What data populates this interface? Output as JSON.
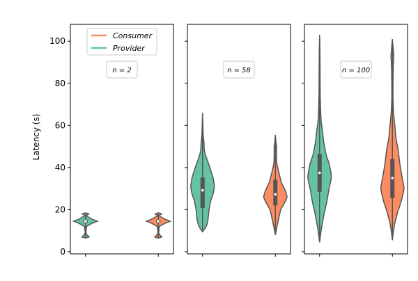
{
  "chart_data": {
    "type": "violin",
    "ylabel": "Latency (s)",
    "ylim": [
      -1,
      108
    ],
    "yticks": [
      "0",
      "20",
      "40",
      "60",
      "80",
      "100"
    ],
    "ytick_values": [
      0,
      20,
      40,
      60,
      80,
      100
    ],
    "legend": {
      "placement": "top-center of first panel",
      "entries": [
        {
          "label": "Consumer",
          "color": "#fc8d62"
        },
        {
          "label": "Provider",
          "color": "#66c2a5"
        }
      ]
    },
    "panels": [
      {
        "annotation": "n = 2",
        "violins": [
          {
            "series": "Provider",
            "color": "#66c2a5",
            "min": 6.5,
            "max": 18.5,
            "q1": 13.8,
            "median": 14.5,
            "q3": 15.2,
            "profile": [
              [
                6.5,
                0
              ],
              [
                7,
                0.32
              ],
              [
                8,
                0.12
              ],
              [
                9,
                0.03
              ],
              [
                12,
                0.08
              ],
              [
                13.5,
                0.55
              ],
              [
                14.5,
                1.0
              ],
              [
                15.5,
                0.55
              ],
              [
                17,
                0.08
              ],
              [
                17.5,
                0.14
              ],
              [
                18,
                0.3
              ],
              [
                18.5,
                0
              ]
            ]
          },
          {
            "series": "Consumer",
            "color": "#fc8d62",
            "min": 6.5,
            "max": 18.5,
            "q1": 13.8,
            "median": 14.5,
            "q3": 15.2,
            "profile": [
              [
                6.5,
                0
              ],
              [
                7,
                0.32
              ],
              [
                8,
                0.12
              ],
              [
                9,
                0.03
              ],
              [
                12,
                0.08
              ],
              [
                13.5,
                0.55
              ],
              [
                14.5,
                1.0
              ],
              [
                15.5,
                0.55
              ],
              [
                17,
                0.08
              ],
              [
                17.5,
                0.14
              ],
              [
                18,
                0.3
              ],
              [
                18.5,
                0
              ]
            ]
          }
        ]
      },
      {
        "annotation": "n = 58",
        "violins": [
          {
            "series": "Provider",
            "color": "#66c2a5",
            "min": 9.5,
            "max": 66,
            "q1": 20.8,
            "median": 29.2,
            "q3": 35.3,
            "profile": [
              [
                9.5,
                0
              ],
              [
                12,
                0.32
              ],
              [
                15,
                0.45
              ],
              [
                20,
                0.55
              ],
              [
                24,
                0.68
              ],
              [
                28,
                0.92
              ],
              [
                31,
                1.0
              ],
              [
                35,
                0.9
              ],
              [
                40,
                0.62
              ],
              [
                45,
                0.3
              ],
              [
                48,
                0.15
              ],
              [
                52,
                0.12
              ],
              [
                55,
                0.06
              ],
              [
                60,
                0.03
              ],
              [
                66,
                0
              ]
            ]
          },
          {
            "series": "Consumer",
            "color": "#fc8d62",
            "min": 8,
            "max": 55.5,
            "q1": 22,
            "median": 27.3,
            "q3": 34.2,
            "profile": [
              [
                8,
                0
              ],
              [
                11,
                0.1
              ],
              [
                15,
                0.25
              ],
              [
                20,
                0.45
              ],
              [
                24,
                0.85
              ],
              [
                26,
                1.0
              ],
              [
                29,
                0.85
              ],
              [
                33,
                0.5
              ],
              [
                38,
                0.28
              ],
              [
                42,
                0.12
              ],
              [
                46,
                0.1
              ],
              [
                50,
                0.1
              ],
              [
                52,
                0.05
              ],
              [
                55.5,
                0
              ]
            ]
          }
        ]
      },
      {
        "annotation": "n = 100",
        "violins": [
          {
            "series": "Provider",
            "color": "#66c2a5",
            "min": 4.5,
            "max": 103,
            "q1": 28.5,
            "median": 37.5,
            "q3": 46.5,
            "profile": [
              [
                4.5,
                0
              ],
              [
                8,
                0.08
              ],
              [
                12,
                0.18
              ],
              [
                18,
                0.38
              ],
              [
                24,
                0.62
              ],
              [
                30,
                0.8
              ],
              [
                35,
                1.0
              ],
              [
                38,
                0.95
              ],
              [
                42,
                0.8
              ],
              [
                46,
                0.55
              ],
              [
                52,
                0.35
              ],
              [
                57,
                0.25
              ],
              [
                62,
                0.13
              ],
              [
                68,
                0.08
              ],
              [
                75,
                0.05
              ],
              [
                85,
                0.04
              ],
              [
                95,
                0.03
              ],
              [
                103,
                0
              ]
            ]
          },
          {
            "series": "Consumer",
            "color": "#fc8d62",
            "min": 5.5,
            "max": 101,
            "q1": 25.5,
            "median": 35,
            "q3": 44,
            "profile": [
              [
                5.5,
                0
              ],
              [
                9,
                0.07
              ],
              [
                13,
                0.18
              ],
              [
                18,
                0.4
              ],
              [
                24,
                0.75
              ],
              [
                30,
                1.0
              ],
              [
                36,
                0.8
              ],
              [
                42,
                0.62
              ],
              [
                48,
                0.5
              ],
              [
                54,
                0.3
              ],
              [
                60,
                0.2
              ],
              [
                66,
                0.1
              ],
              [
                72,
                0.05
              ],
              [
                80,
                0.05
              ],
              [
                88,
                0.07
              ],
              [
                93,
                0.12
              ],
              [
                97,
                0.06
              ],
              [
                101,
                0
              ]
            ]
          }
        ]
      }
    ]
  }
}
